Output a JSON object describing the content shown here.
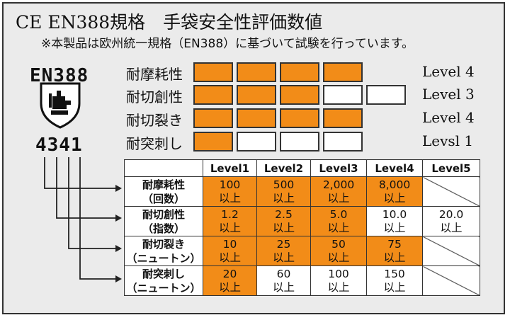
{
  "title": "CE EN388規格　手袋安全性評価数値",
  "note": "※本製品は欧州統一規格（EN388）に基づいて試験を行っています。",
  "standard_label": "EN388",
  "icon": "shield-glove-icon",
  "rating_code": "4341",
  "accent_color": "#f28c18",
  "ratings": [
    {
      "label": "耐摩耗性",
      "filled": 4,
      "total": 4,
      "level_text": "Level 4"
    },
    {
      "label": "耐切創性",
      "filled": 3,
      "total": 5,
      "level_text": "Level 3"
    },
    {
      "label": "耐切裂き",
      "filled": 4,
      "total": 4,
      "level_text": "Level 4"
    },
    {
      "label": "耐突刺し",
      "filled": 1,
      "total": 4,
      "level_text": "Levsl 1"
    }
  ],
  "table": {
    "headers": [
      "Level1",
      "Level2",
      "Level3",
      "Level4",
      "Level5"
    ],
    "rows": [
      {
        "label1": "耐摩耗性",
        "label2": "（回数）",
        "cells": [
          [
            "100",
            "以上"
          ],
          [
            "500",
            "以上"
          ],
          [
            "2,000",
            "以上"
          ],
          [
            "8,000",
            "以上"
          ],
          [
            "",
            ""
          ]
        ],
        "highlight_count": 4,
        "slash_last": true
      },
      {
        "label1": "耐切創性",
        "label2": "（指数）",
        "cells": [
          [
            "1.2",
            "以上"
          ],
          [
            "2.5",
            "以上"
          ],
          [
            "5.0",
            "以上"
          ],
          [
            "10.0",
            "以上"
          ],
          [
            "20.0",
            "以上"
          ]
        ],
        "highlight_count": 3,
        "slash_last": false
      },
      {
        "label1": "耐切裂き",
        "label2": "（ニュートン）",
        "cells": [
          [
            "10",
            "以上"
          ],
          [
            "25",
            "以上"
          ],
          [
            "50",
            "以上"
          ],
          [
            "75",
            "以上"
          ],
          [
            "",
            ""
          ]
        ],
        "highlight_count": 4,
        "slash_last": true
      },
      {
        "label1": "耐突刺し",
        "label2": "（ニュートン）",
        "cells": [
          [
            "20",
            "以上"
          ],
          [
            "60",
            "以上"
          ],
          [
            "100",
            "以上"
          ],
          [
            "150",
            "以上"
          ],
          [
            "",
            ""
          ]
        ],
        "highlight_count": 1,
        "slash_last": true
      }
    ]
  }
}
